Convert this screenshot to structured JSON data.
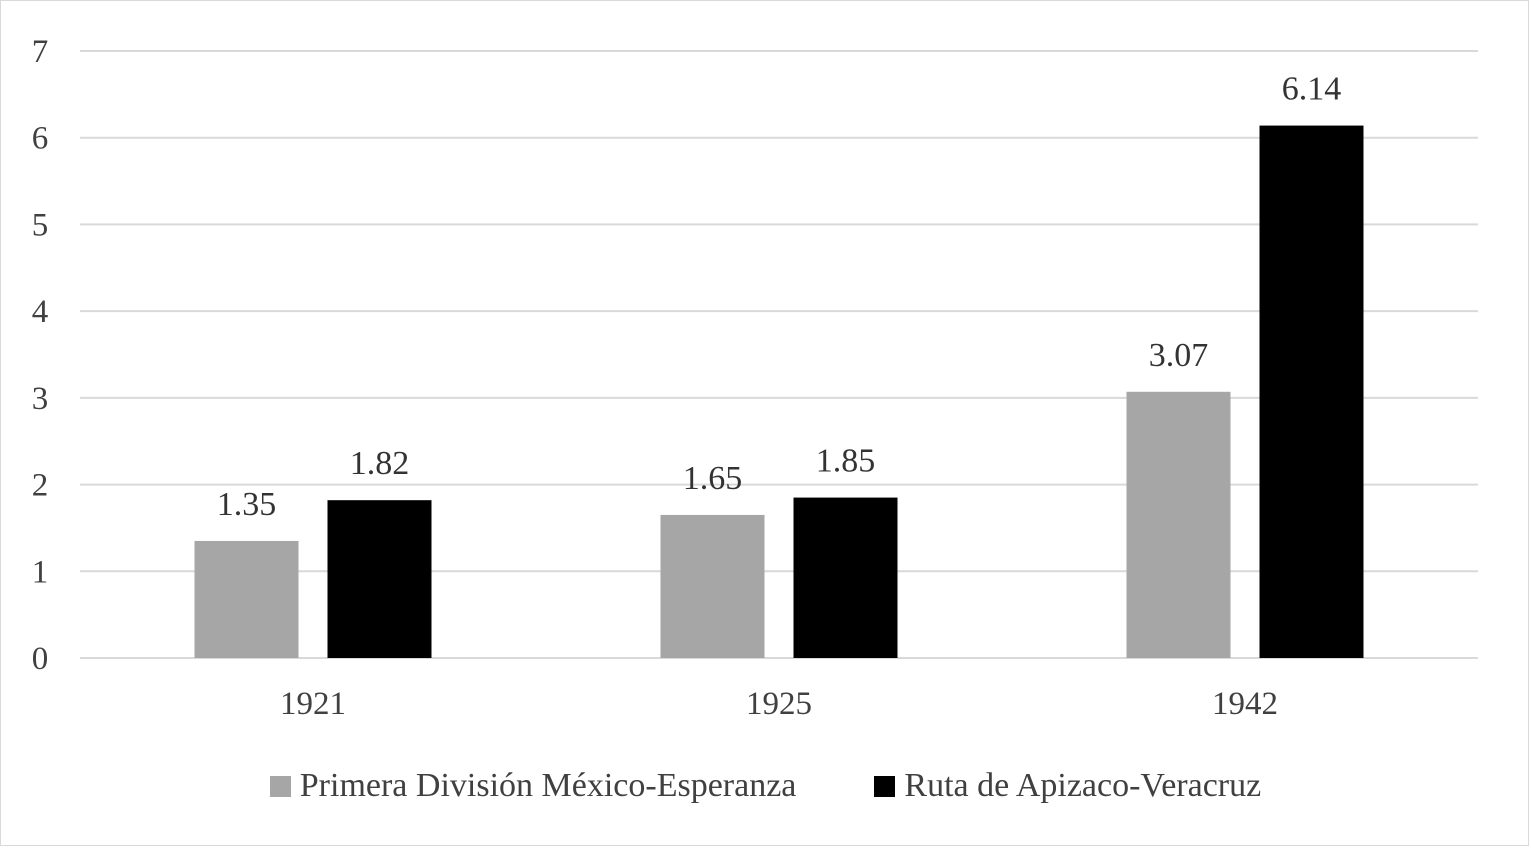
{
  "chart_data": {
    "type": "bar",
    "title": "",
    "xlabel": "",
    "ylabel": "",
    "categories": [
      "1921",
      "1925",
      "1942"
    ],
    "series": [
      {
        "name": "Primera División México-Esperanza",
        "values": [
          1.35,
          1.65,
          3.07
        ],
        "color": "#a6a6a6"
      },
      {
        "name": "Ruta de Apizaco-Veracruz",
        "values": [
          1.82,
          1.85,
          6.14
        ],
        "color": "#000000"
      }
    ],
    "ylim": [
      0,
      7
    ],
    "yticks": [
      "0",
      "1",
      "2",
      "3",
      "4",
      "5",
      "6",
      "7"
    ],
    "data_labels": [
      [
        "1.35",
        "1.65",
        "3.07"
      ],
      [
        "1.82",
        "1.85",
        "6.14"
      ]
    ],
    "grid": true,
    "legend_position": "bottom",
    "gridline_color": "#d9d9d9"
  }
}
